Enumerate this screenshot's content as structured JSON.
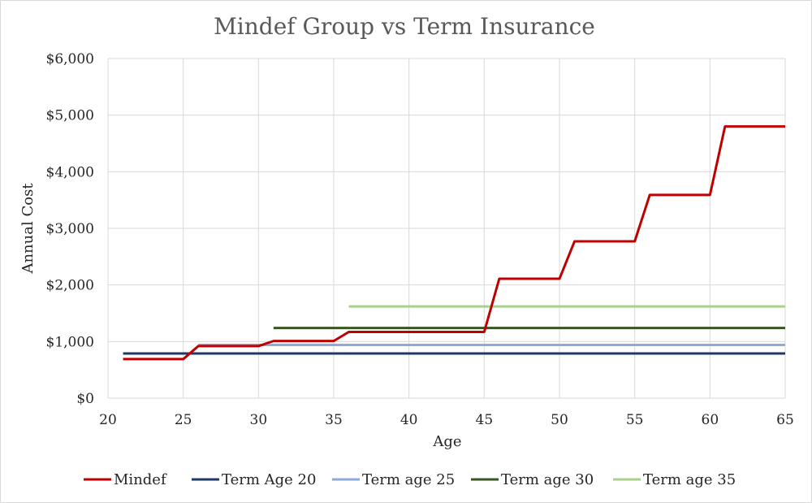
{
  "chart_data": {
    "type": "line",
    "title": "Mindef Group vs Term Insurance",
    "xlabel": "Age",
    "ylabel": "Annual Cost",
    "xlim": [
      20,
      65
    ],
    "ylim": [
      0,
      6000
    ],
    "x_ticks": [
      20,
      25,
      30,
      35,
      40,
      45,
      50,
      55,
      60,
      65
    ],
    "y_ticks": [
      0,
      1000,
      2000,
      3000,
      4000,
      5000,
      6000
    ],
    "y_tick_labels": [
      "$0",
      "$1,000",
      "$2,000",
      "$3,000",
      "$4,000",
      "$5,000",
      "$6,000"
    ],
    "grid": true,
    "legend_position": "bottom",
    "series": [
      {
        "name": "Mindef",
        "color": "#c00000",
        "x": [
          21,
          25,
          26,
          30,
          31,
          35,
          36,
          45,
          46,
          50,
          51,
          55,
          56,
          60,
          61,
          65
        ],
        "y": [
          690,
          690,
          920,
          920,
          1010,
          1010,
          1170,
          1170,
          2110,
          2110,
          2770,
          2770,
          3590,
          3590,
          4800,
          4800
        ]
      },
      {
        "name": "Term Age 20",
        "color": "#1f3864",
        "x": [
          21,
          65
        ],
        "y": [
          790,
          790
        ]
      },
      {
        "name": "Term age 25",
        "color": "#8eaadb",
        "x": [
          26,
          65
        ],
        "y": [
          940,
          940
        ]
      },
      {
        "name": "Term age 30",
        "color": "#375623",
        "x": [
          31,
          65
        ],
        "y": [
          1240,
          1240
        ]
      },
      {
        "name": "Term age 35",
        "color": "#a9d18e",
        "x": [
          36,
          65
        ],
        "y": [
          1620,
          1620
        ]
      }
    ]
  }
}
